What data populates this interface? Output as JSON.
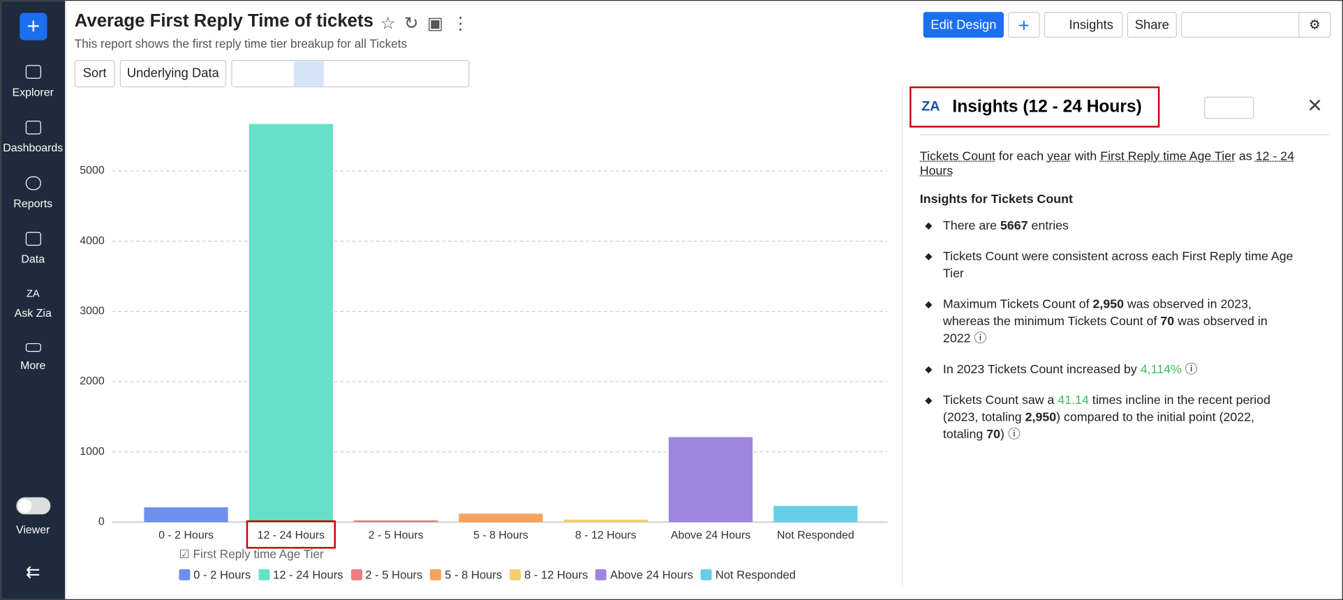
{
  "sidebar": {
    "items": [
      "Explorer",
      "Dashboards",
      "Reports",
      "Data",
      "Ask Zia",
      "More"
    ],
    "mode": "Viewer"
  },
  "header": {
    "title": "Average First Reply Time of tickets",
    "subtitle": "This report shows the first reply time tier breakup for all Tickets",
    "buttons": [
      "Edit Design",
      "Insights",
      "Share"
    ]
  },
  "toolbar": {
    "buttons": [
      "Sort",
      "Underlying Data"
    ]
  },
  "chart_data": {
    "type": "bar",
    "categories": [
      "0 - 2 Hours",
      "12 - 24 Hours",
      "2 - 5 Hours",
      "5 - 8 Hours",
      "8 - 12 Hours",
      "Above 24 Hours",
      "Not Responded"
    ],
    "values": [
      210,
      5667,
      25,
      120,
      35,
      1210,
      230
    ],
    "colors": [
      "#6f8fef",
      "#67e0c8",
      "#f07c80",
      "#f5a25d",
      "#f4cf6a",
      "#9e86e0",
      "#66cfe8"
    ],
    "ylim": [
      0,
      5800
    ],
    "yticks": [
      0,
      1000,
      2000,
      3000,
      4000,
      5000
    ],
    "grid": true,
    "legend_title": "First Reply time Age Tier"
  },
  "insights": {
    "title": "Insights (12 - 24 Hours)",
    "intro": [
      "Tickets Count",
      " for each ",
      "year",
      " with ",
      "First Reply time Age Tier",
      " as ",
      "12 - 24 Hours"
    ],
    "subheading": "Insights for Tickets Count",
    "bullets": [
      [
        "There are ",
        "5667",
        " entries"
      ],
      [
        "Tickets Count were consistent across each First Reply time Age Tier"
      ],
      [
        "Maximum Tickets Count of ",
        "2,950",
        " was observed in 2023, whereas the minimum Tickets Count of ",
        "70",
        " was observed in 2022"
      ],
      [
        "In 2023 Tickets Count increased by ",
        "4,114%"
      ],
      [
        "Tickets Count saw a ",
        "41.14",
        " times incline in the recent period (2023, totaling ",
        "2,950",
        ") compared to the initial point (2022, totaling ",
        "70",
        ")"
      ]
    ]
  }
}
